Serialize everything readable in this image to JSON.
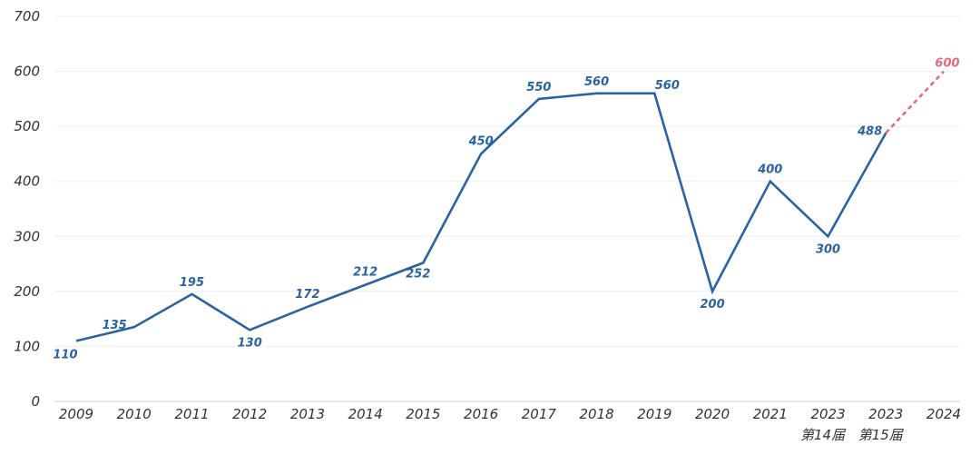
{
  "chart_data": {
    "type": "line",
    "categories": [
      "2009",
      "2010",
      "2011",
      "2012",
      "2013",
      "2014",
      "2015",
      "2016",
      "2017",
      "2018",
      "2019",
      "2020",
      "2021",
      "2023",
      "2023",
      "2024"
    ],
    "subcategories": [
      "",
      "",
      "",
      "",
      "",
      "",
      "",
      "",
      "",
      "",
      "",
      "",
      "",
      "第14届",
      "第15届",
      ""
    ],
    "series": [
      {
        "values": [
          110,
          135,
          195,
          130,
          172,
          212,
          252,
          450,
          550,
          560,
          560,
          200,
          400,
          300,
          488,
          null
        ],
        "color": "#2a63a3",
        "style": "solid"
      },
      {
        "values": [
          null,
          null,
          null,
          null,
          null,
          null,
          null,
          null,
          null,
          null,
          null,
          null,
          null,
          null,
          488,
          600
        ],
        "color": "#e36a82",
        "style": "dashed"
      }
    ],
    "labels": [
      {
        "index": 0,
        "text": "110",
        "color": "#2a63a3"
      },
      {
        "index": 1,
        "text": "135",
        "color": "#2a63a3"
      },
      {
        "index": 2,
        "text": "195",
        "color": "#2a63a3"
      },
      {
        "index": 3,
        "text": "130",
        "color": "#2a63a3"
      },
      {
        "index": 4,
        "text": "172",
        "color": "#2a63a3"
      },
      {
        "index": 5,
        "text": "212",
        "color": "#2a63a3"
      },
      {
        "index": 6,
        "text": "252",
        "color": "#2a63a3"
      },
      {
        "index": 7,
        "text": "450",
        "color": "#2a63a3"
      },
      {
        "index": 8,
        "text": "550",
        "color": "#2a63a3"
      },
      {
        "index": 9,
        "text": "560",
        "color": "#2a63a3"
      },
      {
        "index": 10,
        "text": "560",
        "color": "#2a63a3"
      },
      {
        "index": 11,
        "text": "200",
        "color": "#2a63a3"
      },
      {
        "index": 12,
        "text": "400",
        "color": "#2a63a3"
      },
      {
        "index": 13,
        "text": "300",
        "color": "#2a63a3"
      },
      {
        "index": 14,
        "text": "488",
        "color": "#2a63a3"
      },
      {
        "index": 15,
        "text": "600",
        "color": "#e36a82"
      }
    ],
    "yticks": [
      "0",
      "100",
      "200",
      "300",
      "400",
      "500",
      "600",
      "700"
    ],
    "ylim": [
      0,
      700
    ],
    "grid": true,
    "legend": "none",
    "title": "",
    "xlabel": "",
    "ylabel": ""
  }
}
